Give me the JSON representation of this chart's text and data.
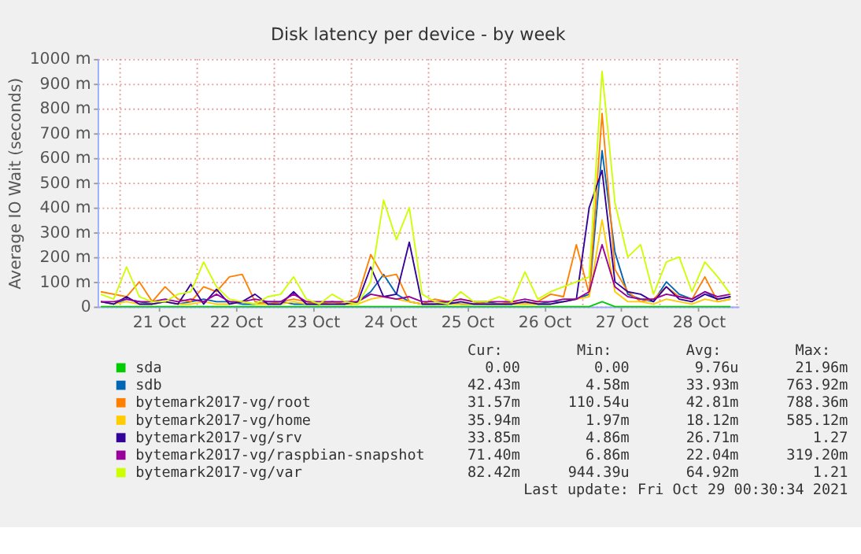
{
  "chart_data": {
    "type": "line",
    "title": "Disk latency per device - by week",
    "ylabel": "Average IO Wait (seconds)",
    "x": [
      "2021-10-20T18:00",
      "2021-10-20T22:00",
      "2021-10-21T02:00",
      "2021-10-21T06:00",
      "2021-10-21T10:00",
      "2021-10-21T14:00",
      "2021-10-21T18:00",
      "2021-10-21T22:00",
      "2021-10-22T02:00",
      "2021-10-22T06:00",
      "2021-10-22T10:00",
      "2021-10-22T14:00",
      "2021-10-22T18:00",
      "2021-10-22T22:00",
      "2021-10-23T02:00",
      "2021-10-23T06:00",
      "2021-10-23T10:00",
      "2021-10-23T14:00",
      "2021-10-23T18:00",
      "2021-10-23T22:00",
      "2021-10-24T02:00",
      "2021-10-24T06:00",
      "2021-10-24T10:00",
      "2021-10-24T14:00",
      "2021-10-24T18:00",
      "2021-10-24T22:00",
      "2021-10-25T02:00",
      "2021-10-25T06:00",
      "2021-10-25T10:00",
      "2021-10-25T14:00",
      "2021-10-25T18:00",
      "2021-10-25T22:00",
      "2021-10-26T02:00",
      "2021-10-26T06:00",
      "2021-10-26T10:00",
      "2021-10-26T14:00",
      "2021-10-26T18:00",
      "2021-10-26T22:00",
      "2021-10-27T02:00",
      "2021-10-27T06:00",
      "2021-10-27T10:00",
      "2021-10-27T14:00",
      "2021-10-27T18:00",
      "2021-10-27T22:00",
      "2021-10-28T02:00",
      "2021-10-28T06:00",
      "2021-10-28T10:00",
      "2021-10-28T14:00",
      "2021-10-28T18:00",
      "2021-10-28T22:00"
    ],
    "series": [
      {
        "name": "sda",
        "color": "#00cc00",
        "values": [
          0,
          0,
          0,
          0,
          0,
          0,
          0,
          0,
          0,
          0,
          0,
          0,
          0,
          0,
          0,
          0,
          0,
          0,
          0,
          0,
          0,
          0,
          0,
          0,
          0,
          0,
          0,
          0,
          0,
          0,
          0,
          0,
          0,
          0,
          0,
          0,
          0,
          0,
          0,
          20,
          0,
          0,
          0,
          0,
          0,
          0,
          0,
          0,
          0,
          0
        ]
      },
      {
        "name": "sdb",
        "color": "#0066b3",
        "values": [
          20,
          10,
          30,
          20,
          10,
          20,
          10,
          20,
          30,
          20,
          20,
          10,
          10,
          20,
          20,
          10,
          10,
          10,
          20,
          10,
          20,
          60,
          130,
          50,
          20,
          10,
          10,
          20,
          10,
          10,
          20,
          10,
          10,
          20,
          10,
          20,
          20,
          30,
          50,
          630,
          220,
          50,
          30,
          20,
          100,
          50,
          30,
          60,
          30,
          40
        ]
      },
      {
        "name": "bytemark2017-vg/root",
        "color": "#ff8000",
        "values": [
          60,
          50,
          40,
          100,
          20,
          80,
          30,
          20,
          80,
          60,
          120,
          130,
          20,
          10,
          20,
          30,
          20,
          10,
          20,
          10,
          40,
          210,
          120,
          130,
          20,
          10,
          30,
          20,
          30,
          20,
          10,
          10,
          20,
          10,
          20,
          50,
          40,
          250,
          50,
          780,
          150,
          60,
          20,
          30,
          80,
          40,
          30,
          120,
          20,
          30
        ]
      },
      {
        "name": "bytemark2017-vg/home",
        "color": "#ffcc00",
        "values": [
          20,
          10,
          20,
          10,
          10,
          20,
          10,
          10,
          20,
          10,
          10,
          20,
          10,
          10,
          10,
          20,
          10,
          10,
          10,
          10,
          10,
          30,
          40,
          30,
          20,
          10,
          10,
          10,
          10,
          10,
          10,
          10,
          10,
          10,
          10,
          10,
          20,
          30,
          40,
          350,
          60,
          20,
          20,
          10,
          30,
          20,
          10,
          30,
          20,
          30
        ]
      },
      {
        "name": "bytemark2017-vg/srv",
        "color": "#330099",
        "values": [
          20,
          10,
          40,
          10,
          10,
          20,
          10,
          90,
          10,
          70,
          10,
          20,
          50,
          10,
          10,
          60,
          10,
          10,
          10,
          10,
          20,
          160,
          40,
          50,
          260,
          10,
          10,
          10,
          20,
          10,
          10,
          10,
          10,
          20,
          10,
          10,
          20,
          30,
          400,
          550,
          100,
          60,
          50,
          20,
          80,
          30,
          20,
          50,
          30,
          40
        ]
      },
      {
        "name": "bytemark2017-vg/raspbian-snapshot",
        "color": "#990099",
        "values": [
          20,
          20,
          30,
          20,
          20,
          30,
          20,
          30,
          20,
          50,
          20,
          20,
          30,
          20,
          20,
          50,
          20,
          20,
          20,
          20,
          20,
          50,
          40,
          30,
          40,
          20,
          20,
          20,
          30,
          20,
          20,
          20,
          20,
          30,
          20,
          20,
          30,
          30,
          60,
          250,
          80,
          40,
          30,
          30,
          50,
          40,
          30,
          60,
          40,
          50
        ]
      },
      {
        "name": "bytemark2017-vg/var",
        "color": "#ccff00",
        "values": [
          50,
          30,
          160,
          40,
          20,
          20,
          50,
          60,
          180,
          80,
          30,
          20,
          10,
          40,
          50,
          120,
          30,
          10,
          50,
          20,
          10,
          100,
          430,
          270,
          400,
          50,
          20,
          10,
          60,
          20,
          20,
          40,
          20,
          140,
          30,
          60,
          80,
          100,
          120,
          950,
          420,
          200,
          250,
          50,
          180,
          200,
          60,
          180,
          120,
          50
        ]
      }
    ],
    "xlim": [
      "2021-10-20T17:00",
      "2021-10-29T00:30"
    ],
    "xticks": [
      {
        "value": "2021-10-21T00:00",
        "label": null
      },
      {
        "value": "2021-10-21T12:00",
        "label": "21 Oct"
      },
      {
        "value": "2021-10-22T00:00",
        "label": null
      },
      {
        "value": "2021-10-22T12:00",
        "label": "22 Oct"
      },
      {
        "value": "2021-10-23T00:00",
        "label": null
      },
      {
        "value": "2021-10-23T12:00",
        "label": "23 Oct"
      },
      {
        "value": "2021-10-24T00:00",
        "label": null
      },
      {
        "value": "2021-10-24T12:00",
        "label": "24 Oct"
      },
      {
        "value": "2021-10-25T00:00",
        "label": null
      },
      {
        "value": "2021-10-25T12:00",
        "label": "25 Oct"
      },
      {
        "value": "2021-10-26T00:00",
        "label": null
      },
      {
        "value": "2021-10-26T12:00",
        "label": "26 Oct"
      },
      {
        "value": "2021-10-27T00:00",
        "label": null
      },
      {
        "value": "2021-10-27T12:00",
        "label": "27 Oct"
      },
      {
        "value": "2021-10-28T00:00",
        "label": null
      },
      {
        "value": "2021-10-28T12:00",
        "label": "28 Oct"
      },
      {
        "value": "2021-10-29T00:00",
        "label": null
      }
    ],
    "ylim": [
      0,
      1000
    ],
    "yticks": [
      0,
      {
        "value": 100,
        "label": "100 m"
      },
      {
        "value": 200,
        "label": "200 m"
      },
      {
        "value": 300,
        "label": "300 m"
      },
      {
        "value": 400,
        "label": "400 m"
      },
      {
        "value": 500,
        "label": "500 m"
      },
      {
        "value": 600,
        "label": "600 m"
      },
      {
        "value": 700,
        "label": "700 m"
      },
      {
        "value": 800,
        "label": "800 m"
      },
      {
        "value": 900,
        "label": "900 m"
      },
      {
        "value": 1000,
        "label": "1000 m"
      }
    ],
    "grid": true,
    "legend": "bottom",
    "line_style": "solid",
    "marker": "none",
    "annotations": [
      "Cur:",
      "Min:",
      "Avg:",
      "Max:",
      "0.00",
      "0.00",
      "9.76u",
      "21.96m",
      "42.43m",
      "4.58m",
      "33.93m",
      "763.92m",
      "31.57m",
      "110.54u",
      "42.81m",
      "788.36m",
      "35.94m",
      "1.97m",
      "18.12m",
      "585.12m",
      "33.85m",
      "4.86m",
      "26.71m",
      "1.27",
      "71.40m",
      "6.86m",
      "22.04m",
      "319.20m",
      "82.42m",
      "944.39u",
      "64.92m",
      "1.21",
      "Last update: Fri Oct 29 00:30:34 2021"
    ]
  }
}
